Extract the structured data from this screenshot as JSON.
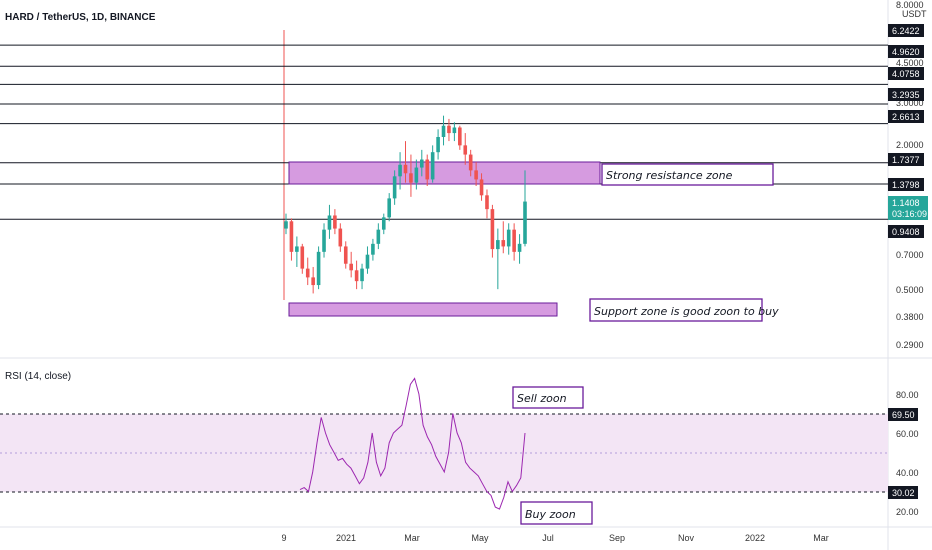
{
  "header": {
    "symbol_title": "HARD / TetherUS, 1D, BINANCE",
    "currency": "USDT"
  },
  "colors": {
    "up": "#26a69a",
    "down": "#ef5350",
    "zone_fill": "#d69be0",
    "zone_border": "#6a1b9a",
    "rsi_line": "#9c27b0",
    "rsi_band": "#f3e5f5",
    "price_tag": "#26a69a",
    "level_tag": "#131722"
  },
  "chart_data": [
    {
      "type": "candlestick",
      "title": "HARD / TetherUS, 1D, BINANCE",
      "y_scale": "log",
      "ylim": [
        0.26,
        8.0
      ],
      "y_axis_unit": "USDT",
      "y_ticks": [
        "8.0000",
        "4.5000",
        "3.0000",
        "2.0000",
        "0.7000",
        "0.5000",
        "0.3800",
        "0.2900"
      ],
      "x_ticks": [
        "9",
        "2021",
        "Mar",
        "May",
        "Jul",
        "Sep",
        "Nov",
        "2022",
        "Mar"
      ],
      "horizontal_levels": [
        "6.2422",
        "4.9620",
        "4.0758",
        "3.2935",
        "2.6613",
        "1.7377",
        "1.3798",
        "0.9408"
      ],
      "last_price": {
        "value": "1.1408",
        "countdown": "03:16:09"
      },
      "zones": [
        {
          "label": "Strong resistance zone",
          "low": 1.38,
          "high": 1.74
        },
        {
          "label": "Support zone is good zoon to buy",
          "low": 0.39,
          "high": 0.43
        }
      ],
      "series": [
        {
          "name": "HARD",
          "values": [
            [
              0.85,
              1.0,
              0.8,
              0.92
            ],
            [
              0.92,
              0.95,
              0.6,
              0.66
            ],
            [
              0.66,
              0.78,
              0.56,
              0.7
            ],
            [
              0.7,
              0.72,
              0.52,
              0.55
            ],
            [
              0.55,
              0.62,
              0.46,
              0.5
            ],
            [
              0.5,
              0.56,
              0.42,
              0.46
            ],
            [
              0.46,
              0.7,
              0.44,
              0.66
            ],
            [
              0.66,
              0.9,
              0.62,
              0.84
            ],
            [
              0.84,
              1.1,
              0.76,
              0.98
            ],
            [
              0.98,
              1.05,
              0.8,
              0.85
            ],
            [
              0.85,
              0.9,
              0.66,
              0.7
            ],
            [
              0.7,
              0.74,
              0.55,
              0.58
            ],
            [
              0.58,
              0.66,
              0.5,
              0.54
            ],
            [
              0.54,
              0.6,
              0.44,
              0.48
            ],
            [
              0.48,
              0.58,
              0.44,
              0.55
            ],
            [
              0.55,
              0.7,
              0.52,
              0.64
            ],
            [
              0.64,
              0.76,
              0.6,
              0.72
            ],
            [
              0.72,
              0.9,
              0.68,
              0.84
            ],
            [
              0.84,
              1.0,
              0.8,
              0.96
            ],
            [
              0.96,
              1.25,
              0.92,
              1.18
            ],
            [
              1.18,
              1.6,
              1.1,
              1.5
            ],
            [
              1.5,
              1.95,
              1.3,
              1.7
            ],
            [
              1.7,
              2.2,
              1.4,
              1.55
            ],
            [
              1.55,
              1.9,
              1.2,
              1.4
            ],
            [
              1.4,
              1.8,
              1.3,
              1.65
            ],
            [
              1.65,
              2.0,
              1.5,
              1.8
            ],
            [
              1.8,
              1.9,
              1.35,
              1.45
            ],
            [
              1.45,
              2.1,
              1.4,
              1.95
            ],
            [
              1.95,
              2.5,
              1.8,
              2.3
            ],
            [
              2.3,
              2.9,
              2.1,
              2.6
            ],
            [
              2.6,
              2.8,
              2.2,
              2.4
            ],
            [
              2.4,
              2.7,
              2.2,
              2.55
            ],
            [
              2.55,
              2.6,
              2.0,
              2.1
            ],
            [
              2.1,
              2.4,
              1.7,
              1.9
            ],
            [
              1.9,
              2.0,
              1.5,
              1.6
            ],
            [
              1.6,
              1.75,
              1.35,
              1.45
            ],
            [
              1.45,
              1.55,
              1.15,
              1.22
            ],
            [
              1.22,
              1.3,
              0.95,
              1.05
            ],
            [
              1.05,
              1.1,
              0.62,
              0.68
            ],
            [
              0.68,
              0.85,
              0.44,
              0.75
            ],
            [
              0.75,
              0.92,
              0.65,
              0.7
            ],
            [
              0.7,
              0.9,
              0.64,
              0.84
            ],
            [
              0.84,
              0.9,
              0.6,
              0.66
            ],
            [
              0.66,
              0.8,
              0.58,
              0.72
            ],
            [
              0.72,
              1.6,
              0.7,
              1.14
            ]
          ]
        }
      ]
    },
    {
      "type": "line",
      "title": "RSI (14, close)",
      "ylim": [
        15,
        92
      ],
      "y_ticks": [
        "80.00",
        "60.00",
        "40.00",
        "20.00"
      ],
      "levels": [
        "69.50",
        "30.02"
      ],
      "annotations": [
        "Sell zoon",
        "Buy zoon"
      ],
      "series": [
        {
          "name": "RSI",
          "values": [
            31,
            32,
            30,
            40,
            55,
            68,
            60,
            54,
            50,
            46,
            47,
            44,
            42,
            38,
            34,
            37,
            45,
            60,
            45,
            38,
            42,
            55,
            60,
            62,
            64,
            74,
            85,
            88,
            80,
            64,
            58,
            54,
            48,
            44,
            40,
            50,
            70,
            60,
            55,
            45,
            42,
            40,
            38,
            34,
            30,
            28,
            22,
            21,
            27,
            35,
            30,
            33,
            37,
            60
          ]
        }
      ]
    }
  ]
}
